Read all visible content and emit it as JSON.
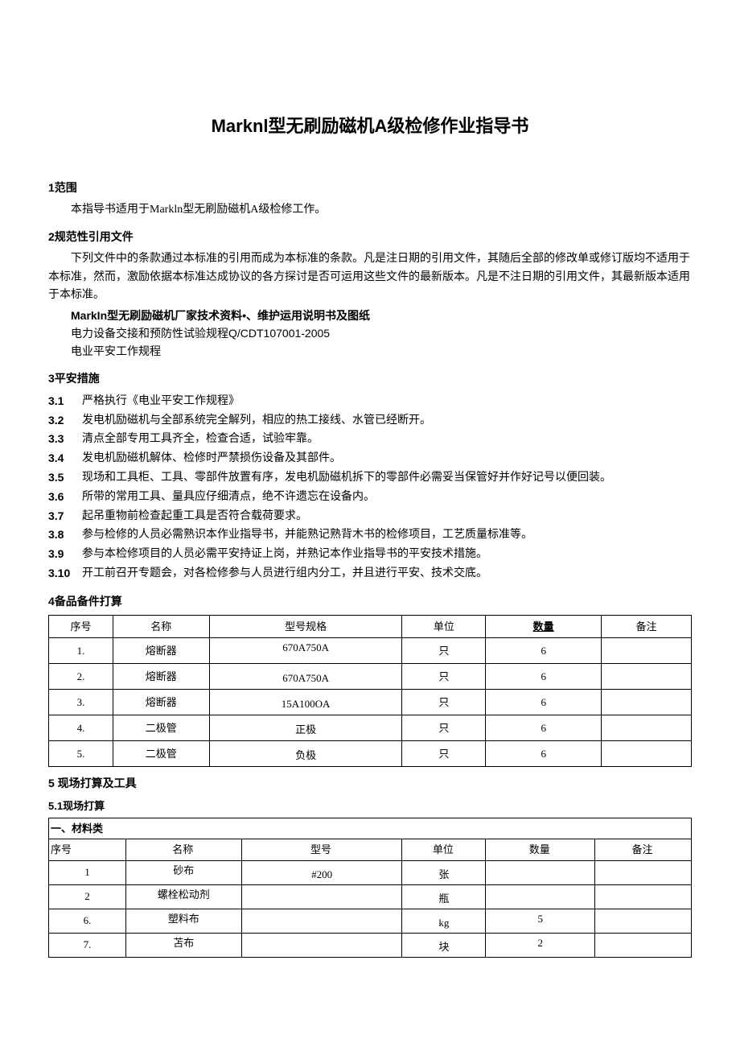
{
  "title": "Marknl型无刷励磁机A级检修作业指导书",
  "sections": {
    "s1": {
      "heading": "1范围",
      "body": "本指导书适用于Markln型无刷励磁机A级检修工作。"
    },
    "s2": {
      "heading": "2规范性引用文件",
      "body": "下列文件中的条款通过本标准的引用而成为本标准的条款。凡是注日期的引用文件，其随后全部的修改单或修订版均不适用于本标准，然而，激励依据本标准达成协议的各方探讨是否可运用这些文件的最新版本。凡是不注日期的引用文件，其最新版本适用于本标准。",
      "refs": [
        "MarkIn型无刷励磁机厂家技术资料•、维护运用说明书及图纸",
        "电力设备交接和预防性试验规程Q/CDT107001-2005",
        "电业平安工作规程"
      ]
    },
    "s3": {
      "heading": "3平安措施",
      "items": [
        {
          "num": "3.1",
          "text": "严格执行《电业平安工作规程》"
        },
        {
          "num": "3.2",
          "text": "发电机励磁机与全部系统完全解列，相应的热工接线、水管已经断开。"
        },
        {
          "num": "3.3",
          "text": "清点全部专用工具齐全，检查合适，试验牢靠。"
        },
        {
          "num": "3.4",
          "text": "发电机励磁机解体、检修时严禁损伤设备及其部件。"
        },
        {
          "num": "3.5",
          "text": "现场和工具柜、工具、零部件放置有序，发电机励磁机拆下的零部件必需妥当保管好并作好记号以便回装。"
        },
        {
          "num": "3.6",
          "text": "所带的常用工具、量具应仔细清点，绝不许遗忘在设备内。"
        },
        {
          "num": "3.7",
          "text": "起吊重物前检查起重工具是否符合载荷要求。"
        },
        {
          "num": "3.8",
          "text": "参与检修的人员必需熟识本作业指导书，并能熟记熟背木书的检修项目，工艺质量标准等。"
        },
        {
          "num": "3.9",
          "text": "参与本检修项目的人员必需平安持证上岗，并熟记本作业指导书的平安技术措施。"
        },
        {
          "num": "3.10",
          "text": "开工前召开专题会，对各检修参与人员进行组内分工，并且进行平安、技术交底。"
        }
      ]
    },
    "s4": {
      "heading": "4备品备件打算",
      "columns": [
        "序号",
        "名称",
        "型号规格",
        "单位",
        "数量",
        "备注"
      ],
      "rows": [
        {
          "idx": "1.",
          "name": "熔断器",
          "model": "670A750A",
          "unit": "只",
          "qty": "6",
          "remark": ""
        },
        {
          "idx": "2.",
          "name": "熔断器",
          "model": "670A750A",
          "unit": "只",
          "qty": "6",
          "remark": ""
        },
        {
          "idx": "3.",
          "name": "熔断器",
          "model": "15A100OA",
          "unit": "只",
          "qty": "6",
          "remark": ""
        },
        {
          "idx": "4.",
          "name": "二极管",
          "model": "正极",
          "unit": "只",
          "qty": "6",
          "remark": ""
        },
        {
          "idx": "5.",
          "name": "二极管",
          "model": "负极",
          "unit": "只",
          "qty": "6",
          "remark": ""
        }
      ]
    },
    "s5": {
      "heading": "5    现场打算及工具",
      "sub": "5.1现场打算",
      "category_label": "一、材料类",
      "columns": [
        "序号",
        "名称",
        "型号",
        "单位",
        "数量",
        "备注"
      ],
      "rows": [
        {
          "idx": "1",
          "name": "砂布",
          "model": "#200",
          "unit": "张",
          "qty": "",
          "remark": ""
        },
        {
          "idx": "2",
          "name": "螺栓松动剂",
          "model": "",
          "unit": "瓶",
          "qty": "",
          "remark": ""
        },
        {
          "idx": "6.",
          "name": "塑料布",
          "model": "",
          "unit": "kg",
          "qty": "5",
          "remark": ""
        },
        {
          "idx": "7.",
          "name": "苫布",
          "model": "",
          "unit": "块",
          "qty": "2",
          "remark": ""
        }
      ]
    }
  }
}
